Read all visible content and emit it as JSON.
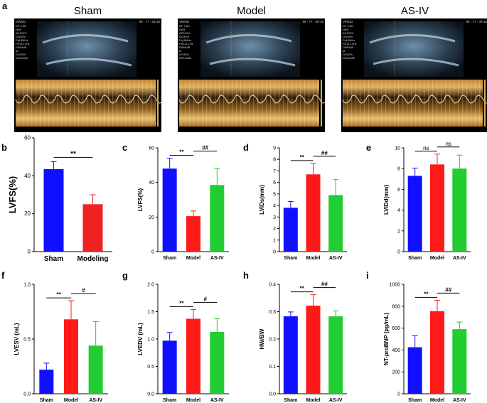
{
  "figure": {
    "panel_a": {
      "label": "a",
      "groups": [
        "Sham",
        "Model",
        "AS-IV"
      ],
      "scans": [
        {
          "group": "Sham",
          "header": "VINNO",
          "info_lines": [
            "DP 3.5D",
            "HAR",
            "AP100%",
            "DG49%",
            "Fq18MHz",
            "FR111.1Hz",
            "DR64dB",
            "M",
            "DG45%",
            "DR114dB"
          ],
          "top_right": "96 - 77 - 39-16"
        },
        {
          "group": "Model",
          "header": "VINNO",
          "info_lines": [
            "DP 3.5D",
            "HAR",
            "AP100%",
            "DG49%",
            "Fq18MHz",
            "FR111.1Hz",
            "DR64dB",
            "M",
            "DG45%",
            "DR114dB"
          ],
          "top_right": "96 - 77 - 40-16"
        },
        {
          "group": "AS-IV",
          "header": "VINNO",
          "info_lines": [
            "DP 3.5D",
            "HAR",
            "AP100%",
            "DG49%",
            "Fq18MHz",
            "FR111.1Hz",
            "DR64dB",
            "M",
            "DG45%",
            "DR114dB"
          ],
          "top_right": "96 - 77 - 39-16"
        }
      ]
    }
  },
  "colors": {
    "sham": "#1010ff",
    "model": "#ff1a1a",
    "asiv": "#22cc33",
    "modeling": "#ee2222",
    "axis": "#000000"
  },
  "chart_data": [
    {
      "id": "b",
      "label": "b",
      "type": "bar",
      "categories": [
        "Sham",
        "Modeling"
      ],
      "values": [
        43.5,
        25
      ],
      "errors": [
        4,
        5
      ],
      "ylabel": "LVFS(%)",
      "ylim": [
        0,
        60
      ],
      "yticks": [
        0,
        20,
        40,
        60
      ],
      "colors": [
        "#1010ff",
        "#ee2222"
      ],
      "annotations": [
        {
          "from": 0,
          "to": 1,
          "text": "**"
        }
      ]
    },
    {
      "id": "c",
      "label": "c",
      "type": "bar",
      "categories": [
        "Sham",
        "Model",
        "AS-IV"
      ],
      "values": [
        48,
        20.5,
        38.5
      ],
      "errors": [
        6,
        3,
        9.5
      ],
      "ylabel": "LVFS(%)",
      "ylim": [
        0,
        60
      ],
      "yticks": [
        0,
        20,
        40,
        60
      ],
      "colors": [
        "#1010ff",
        "#ff1a1a",
        "#22cc33"
      ],
      "annotations": [
        {
          "from": 0,
          "to": 1,
          "text": "**"
        },
        {
          "from": 1,
          "to": 2,
          "text": "##"
        }
      ]
    },
    {
      "id": "d",
      "label": "d",
      "type": "bar",
      "categories": [
        "Sham",
        "Model",
        "AS-IV"
      ],
      "values": [
        3.8,
        6.7,
        4.9
      ],
      "errors": [
        0.55,
        0.95,
        1.35
      ],
      "ylabel": "LVIDs(mm)",
      "ylim": [
        0,
        9
      ],
      "yticks": [
        0,
        1,
        2,
        3,
        4,
        5,
        6,
        7,
        8,
        9
      ],
      "colors": [
        "#1010ff",
        "#ff1a1a",
        "#22cc33"
      ],
      "annotations": [
        {
          "from": 0,
          "to": 1,
          "text": "**"
        },
        {
          "from": 1,
          "to": 2,
          "text": "##"
        }
      ]
    },
    {
      "id": "e",
      "label": "e",
      "type": "bar",
      "categories": [
        "Sham",
        "Model",
        "AS-IV"
      ],
      "values": [
        7.3,
        8.4,
        8.0
      ],
      "errors": [
        0.75,
        1.0,
        1.3
      ],
      "ylabel": "LVIDd(mm)",
      "ylim": [
        0,
        10
      ],
      "yticks": [
        0,
        2,
        4,
        6,
        8,
        10
      ],
      "colors": [
        "#1010ff",
        "#ff1a1a",
        "#22cc33"
      ],
      "annotations": [
        {
          "from": 0,
          "to": 1,
          "text": "ns"
        },
        {
          "from": 1,
          "to": 2,
          "text": "ns"
        }
      ]
    },
    {
      "id": "f",
      "label": "f",
      "type": "bar",
      "categories": [
        "Sham",
        "Model",
        "AS-IV"
      ],
      "values": [
        0.22,
        0.68,
        0.44
      ],
      "errors": [
        0.06,
        0.17,
        0.22
      ],
      "ylabel": "LVESV (mL)",
      "ylim": [
        0,
        1.0
      ],
      "yticks": [
        0.0,
        0.5,
        1.0
      ],
      "tick_decimals": 1,
      "colors": [
        "#1010ff",
        "#ff1a1a",
        "#22cc33"
      ],
      "annotations": [
        {
          "from": 0,
          "to": 1,
          "text": "**"
        },
        {
          "from": 1,
          "to": 2,
          "text": "#"
        }
      ]
    },
    {
      "id": "g",
      "label": "g",
      "type": "bar",
      "categories": [
        "Sham",
        "Model",
        "AS-IV"
      ],
      "values": [
        0.97,
        1.37,
        1.13
      ],
      "errors": [
        0.15,
        0.17,
        0.24
      ],
      "ylabel": "LVEDV (mL)",
      "ylim": [
        0,
        2.0
      ],
      "yticks": [
        0.0,
        0.5,
        1.0,
        1.5,
        2.0
      ],
      "tick_decimals": 1,
      "colors": [
        "#1010ff",
        "#ff1a1a",
        "#22cc33"
      ],
      "annotations": [
        {
          "from": 0,
          "to": 1,
          "text": "**"
        },
        {
          "from": 1,
          "to": 2,
          "text": "#"
        }
      ]
    },
    {
      "id": "h",
      "label": "h",
      "type": "bar",
      "categories": [
        "Sham",
        "Model",
        "AS-IV"
      ],
      "values": [
        0.283,
        0.322,
        0.283
      ],
      "errors": [
        0.016,
        0.04,
        0.02
      ],
      "ylabel": "HW/BW",
      "ylim": [
        0,
        0.4
      ],
      "yticks": [
        0.0,
        0.1,
        0.2,
        0.3,
        0.4
      ],
      "tick_decimals": 1,
      "colors": [
        "#1010ff",
        "#ff1a1a",
        "#22cc33"
      ],
      "annotations": [
        {
          "from": 0,
          "to": 1,
          "text": "**"
        },
        {
          "from": 1,
          "to": 2,
          "text": "##"
        }
      ]
    },
    {
      "id": "i",
      "label": "i",
      "type": "bar",
      "categories": [
        "Sham",
        "Model",
        "AS-IV"
      ],
      "values": [
        425,
        755,
        590
      ],
      "errors": [
        105,
        100,
        65
      ],
      "ylabel": "NT-proBNP (pg/mL)",
      "ylim": [
        0,
        1000
      ],
      "yticks": [
        0,
        200,
        400,
        600,
        800,
        1000
      ],
      "colors": [
        "#1010ff",
        "#ff1a1a",
        "#22cc33"
      ],
      "annotations": [
        {
          "from": 0,
          "to": 1,
          "text": "**"
        },
        {
          "from": 1,
          "to": 2,
          "text": "##"
        }
      ]
    }
  ]
}
